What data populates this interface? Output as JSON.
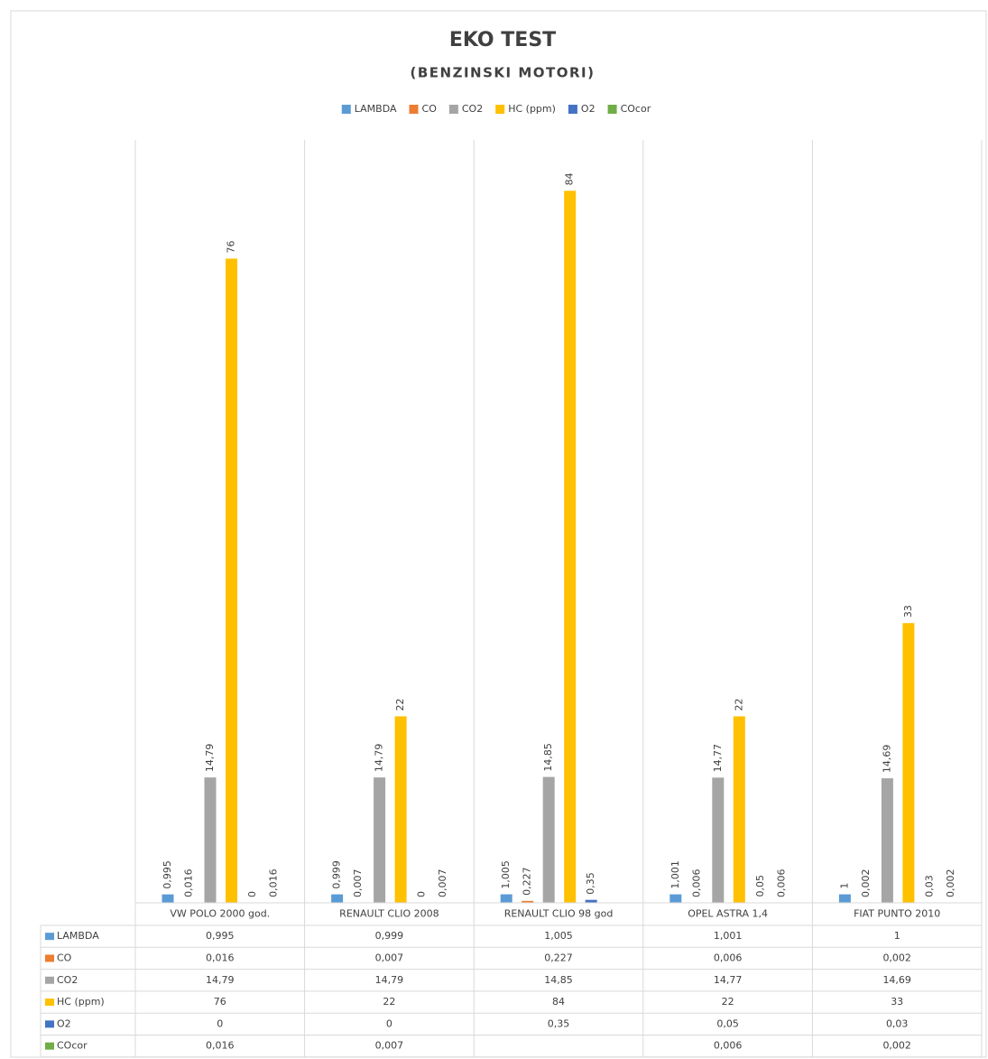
{
  "chart_data": {
    "type": "bar",
    "title": "EKO TEST",
    "subtitle": "(BENZINSKI MOTORI)",
    "categories": [
      "VW POLO 2000 god.",
      "RENAULT CLIO 2008",
      "RENAULT CLIO 98 god",
      "OPEL ASTRA 1,4",
      "FIAT PUNTO 2010"
    ],
    "ylim": [
      0,
      90
    ],
    "legend": "top",
    "data_table": true,
    "series": [
      {
        "name": "LAMBDA",
        "color": "#5b9bd5",
        "values": [
          0.995,
          0.999,
          1.005,
          1.001,
          1
        ],
        "value_labels": [
          "0,995",
          "0,999",
          "1,005",
          "1,001",
          "1"
        ]
      },
      {
        "name": "CO",
        "color": "#ed7d31",
        "values": [
          0.016,
          0.007,
          0.227,
          0.006,
          0.002
        ],
        "value_labels": [
          "0,016",
          "0,007",
          "0,227",
          "0,006",
          "0,002"
        ]
      },
      {
        "name": "CO2",
        "color": "#a5a5a5",
        "values": [
          14.79,
          14.79,
          14.85,
          14.77,
          14.69
        ],
        "value_labels": [
          "14,79",
          "14,79",
          "14,85",
          "14,77",
          "14,69"
        ]
      },
      {
        "name": "HC (ppm)",
        "color": "#ffc000",
        "values": [
          76,
          22,
          84,
          22,
          33
        ],
        "value_labels": [
          "76",
          "22",
          "84",
          "22",
          "33"
        ]
      },
      {
        "name": "O2",
        "color": "#4472c4",
        "values": [
          0,
          0,
          0.35,
          0.05,
          0.03
        ],
        "value_labels": [
          "0",
          "0",
          "0,35",
          "0,05",
          "0,03"
        ]
      },
      {
        "name": "COcor",
        "color": "#70ad47",
        "values": [
          0.016,
          0.007,
          null,
          0.006,
          0.002
        ],
        "value_labels": [
          "0,016",
          "0,007",
          null,
          "0,006",
          "0,002"
        ]
      }
    ]
  }
}
